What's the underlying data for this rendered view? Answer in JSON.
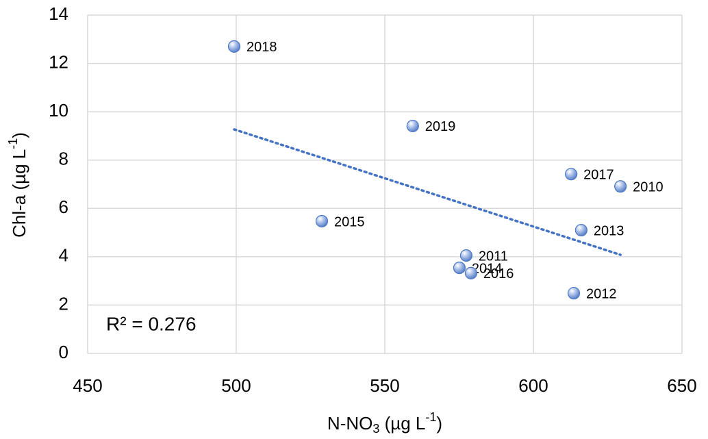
{
  "chart_data": {
    "type": "scatter",
    "x_label": [
      "N-NO",
      "3",
      " (µg L",
      "-1",
      ")"
    ],
    "y_label": [
      "Chl-a (µg L",
      "-1",
      ")"
    ],
    "annotation": "R² = 0.276",
    "x": [
      499.3,
      559.4,
      612.7,
      629.3,
      528.8,
      616.1,
      577.4,
      575.1,
      579.0,
      613.6
    ],
    "y": [
      12.7,
      9.41,
      7.42,
      6.91,
      5.47,
      5.1,
      4.05,
      3.54,
      3.32,
      2.49
    ],
    "labels": [
      "2018",
      "2019",
      "2017",
      "2010",
      "2015",
      "2013",
      "2011",
      "2014",
      "2016",
      "2012"
    ],
    "color": "#4f78c4",
    "trendline": {
      "x": [
        499.3,
        629.3
      ],
      "y": [
        9.27,
        4.08
      ],
      "color": "#4472c4"
    },
    "xlim": [
      450,
      650
    ],
    "xticks": [
      450,
      500,
      550,
      600,
      650
    ],
    "ylim": [
      0,
      14
    ],
    "yticks": [
      0,
      2,
      4,
      6,
      8,
      10,
      12,
      14
    ],
    "grid": true
  }
}
